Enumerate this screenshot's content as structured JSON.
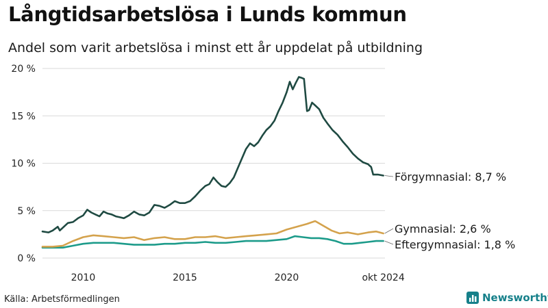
{
  "title": "Långtidsarbetslösa i Lunds kommun",
  "subtitle": "Andel som varit arbetslösa i minst ett år uppdelat på utbildning",
  "source": "Källa: Arbetsförmedlingen",
  "brand": "Newsworthy",
  "colors": {
    "forgymnasial": "#1f4a42",
    "gymnasial": "#d4a24c",
    "eftergymnasial": "#1c9b8a",
    "grid": "#d9d9d9",
    "brand": "#16808a"
  },
  "chart_data": {
    "type": "line",
    "title": "Långtidsarbetslösa i Lunds kommun",
    "subtitle": "Andel som varit arbetslösa i minst ett år uppdelat på utbildning",
    "xlabel": "",
    "ylabel": "",
    "xlim": [
      2008.0,
      2024.83
    ],
    "ylim": [
      0,
      20
    ],
    "x_ticks": [
      {
        "value": 2010,
        "label": "2010"
      },
      {
        "value": 2015,
        "label": "2015"
      },
      {
        "value": 2020,
        "label": "2020"
      },
      {
        "value": 2024.75,
        "label": "okt 2024"
      }
    ],
    "y_ticks": [
      {
        "value": 0,
        "label": "0 %"
      },
      {
        "value": 5,
        "label": "5 %"
      },
      {
        "value": 10,
        "label": "10 %"
      },
      {
        "value": 15,
        "label": "15 %"
      },
      {
        "value": 20,
        "label": "20 %"
      }
    ],
    "grid": true,
    "legend": "none",
    "series": [
      {
        "key": "forgymnasial",
        "end_label": "Förgymnasial: 8,7 %",
        "points": [
          [
            2008.0,
            2.8
          ],
          [
            2008.3,
            2.7
          ],
          [
            2008.5,
            2.9
          ],
          [
            2008.75,
            3.3
          ],
          [
            2008.85,
            2.9
          ],
          [
            2009.0,
            3.2
          ],
          [
            2009.25,
            3.7
          ],
          [
            2009.5,
            3.8
          ],
          [
            2009.75,
            4.2
          ],
          [
            2010.0,
            4.5
          ],
          [
            2010.2,
            5.1
          ],
          [
            2010.4,
            4.8
          ],
          [
            2010.6,
            4.6
          ],
          [
            2010.8,
            4.4
          ],
          [
            2011.0,
            4.9
          ],
          [
            2011.2,
            4.7
          ],
          [
            2011.4,
            4.6
          ],
          [
            2011.6,
            4.4
          ],
          [
            2011.8,
            4.3
          ],
          [
            2012.0,
            4.2
          ],
          [
            2012.25,
            4.5
          ],
          [
            2012.5,
            4.9
          ],
          [
            2012.75,
            4.6
          ],
          [
            2013.0,
            4.5
          ],
          [
            2013.25,
            4.8
          ],
          [
            2013.5,
            5.6
          ],
          [
            2013.75,
            5.5
          ],
          [
            2014.0,
            5.3
          ],
          [
            2014.25,
            5.6
          ],
          [
            2014.5,
            6.0
          ],
          [
            2014.75,
            5.8
          ],
          [
            2015.0,
            5.8
          ],
          [
            2015.25,
            6.0
          ],
          [
            2015.5,
            6.5
          ],
          [
            2015.75,
            7.1
          ],
          [
            2016.0,
            7.6
          ],
          [
            2016.2,
            7.8
          ],
          [
            2016.4,
            8.5
          ],
          [
            2016.6,
            8.0
          ],
          [
            2016.8,
            7.6
          ],
          [
            2017.0,
            7.5
          ],
          [
            2017.2,
            7.9
          ],
          [
            2017.4,
            8.5
          ],
          [
            2017.6,
            9.5
          ],
          [
            2017.8,
            10.5
          ],
          [
            2018.0,
            11.5
          ],
          [
            2018.2,
            12.1
          ],
          [
            2018.4,
            11.8
          ],
          [
            2018.6,
            12.2
          ],
          [
            2018.8,
            12.9
          ],
          [
            2019.0,
            13.5
          ],
          [
            2019.2,
            13.9
          ],
          [
            2019.4,
            14.5
          ],
          [
            2019.6,
            15.5
          ],
          [
            2019.8,
            16.4
          ],
          [
            2020.0,
            17.5
          ],
          [
            2020.15,
            18.6
          ],
          [
            2020.3,
            17.8
          ],
          [
            2020.45,
            18.5
          ],
          [
            2020.6,
            19.1
          ],
          [
            2020.75,
            19.0
          ],
          [
            2020.85,
            18.9
          ],
          [
            2021.0,
            15.5
          ],
          [
            2021.1,
            15.6
          ],
          [
            2021.25,
            16.4
          ],
          [
            2021.4,
            16.1
          ],
          [
            2021.6,
            15.7
          ],
          [
            2021.8,
            14.8
          ],
          [
            2022.0,
            14.2
          ],
          [
            2022.25,
            13.5
          ],
          [
            2022.5,
            13.0
          ],
          [
            2022.75,
            12.3
          ],
          [
            2023.0,
            11.7
          ],
          [
            2023.25,
            11.0
          ],
          [
            2023.5,
            10.5
          ],
          [
            2023.75,
            10.1
          ],
          [
            2024.0,
            9.9
          ],
          [
            2024.15,
            9.6
          ],
          [
            2024.25,
            8.8
          ],
          [
            2024.5,
            8.8
          ],
          [
            2024.75,
            8.7
          ]
        ]
      },
      {
        "key": "gymnasial",
        "end_label": "Gymnasial: 2,6 %",
        "points": [
          [
            2008.0,
            1.2
          ],
          [
            2008.5,
            1.2
          ],
          [
            2009.0,
            1.3
          ],
          [
            2009.5,
            1.8
          ],
          [
            2010.0,
            2.2
          ],
          [
            2010.5,
            2.4
          ],
          [
            2011.0,
            2.3
          ],
          [
            2011.5,
            2.2
          ],
          [
            2012.0,
            2.1
          ],
          [
            2012.5,
            2.2
          ],
          [
            2013.0,
            1.9
          ],
          [
            2013.5,
            2.1
          ],
          [
            2014.0,
            2.2
          ],
          [
            2014.5,
            2.0
          ],
          [
            2015.0,
            2.0
          ],
          [
            2015.5,
            2.2
          ],
          [
            2016.0,
            2.2
          ],
          [
            2016.5,
            2.3
          ],
          [
            2017.0,
            2.1
          ],
          [
            2017.5,
            2.2
          ],
          [
            2018.0,
            2.3
          ],
          [
            2018.5,
            2.4
          ],
          [
            2019.0,
            2.5
          ],
          [
            2019.5,
            2.6
          ],
          [
            2020.0,
            3.0
          ],
          [
            2020.5,
            3.3
          ],
          [
            2021.0,
            3.6
          ],
          [
            2021.4,
            3.9
          ],
          [
            2021.8,
            3.4
          ],
          [
            2022.2,
            2.9
          ],
          [
            2022.6,
            2.6
          ],
          [
            2023.0,
            2.7
          ],
          [
            2023.5,
            2.5
          ],
          [
            2024.0,
            2.7
          ],
          [
            2024.4,
            2.8
          ],
          [
            2024.75,
            2.6
          ]
        ]
      },
      {
        "key": "eftergymnasial",
        "end_label": "Eftergymnasial: 1,8 %",
        "points": [
          [
            2008.0,
            1.1
          ],
          [
            2008.5,
            1.1
          ],
          [
            2009.0,
            1.1
          ],
          [
            2009.5,
            1.3
          ],
          [
            2010.0,
            1.5
          ],
          [
            2010.5,
            1.6
          ],
          [
            2011.0,
            1.6
          ],
          [
            2011.5,
            1.6
          ],
          [
            2012.0,
            1.5
          ],
          [
            2012.5,
            1.4
          ],
          [
            2013.0,
            1.4
          ],
          [
            2013.5,
            1.4
          ],
          [
            2014.0,
            1.5
          ],
          [
            2014.5,
            1.5
          ],
          [
            2015.0,
            1.6
          ],
          [
            2015.5,
            1.6
          ],
          [
            2016.0,
            1.7
          ],
          [
            2016.5,
            1.6
          ],
          [
            2017.0,
            1.6
          ],
          [
            2017.5,
            1.7
          ],
          [
            2018.0,
            1.8
          ],
          [
            2018.5,
            1.8
          ],
          [
            2019.0,
            1.8
          ],
          [
            2019.5,
            1.9
          ],
          [
            2020.0,
            2.0
          ],
          [
            2020.4,
            2.3
          ],
          [
            2020.8,
            2.2
          ],
          [
            2021.2,
            2.1
          ],
          [
            2021.6,
            2.1
          ],
          [
            2022.0,
            2.0
          ],
          [
            2022.4,
            1.8
          ],
          [
            2022.8,
            1.5
          ],
          [
            2023.2,
            1.5
          ],
          [
            2023.6,
            1.6
          ],
          [
            2024.0,
            1.7
          ],
          [
            2024.4,
            1.8
          ],
          [
            2024.75,
            1.8
          ]
        ]
      }
    ]
  }
}
